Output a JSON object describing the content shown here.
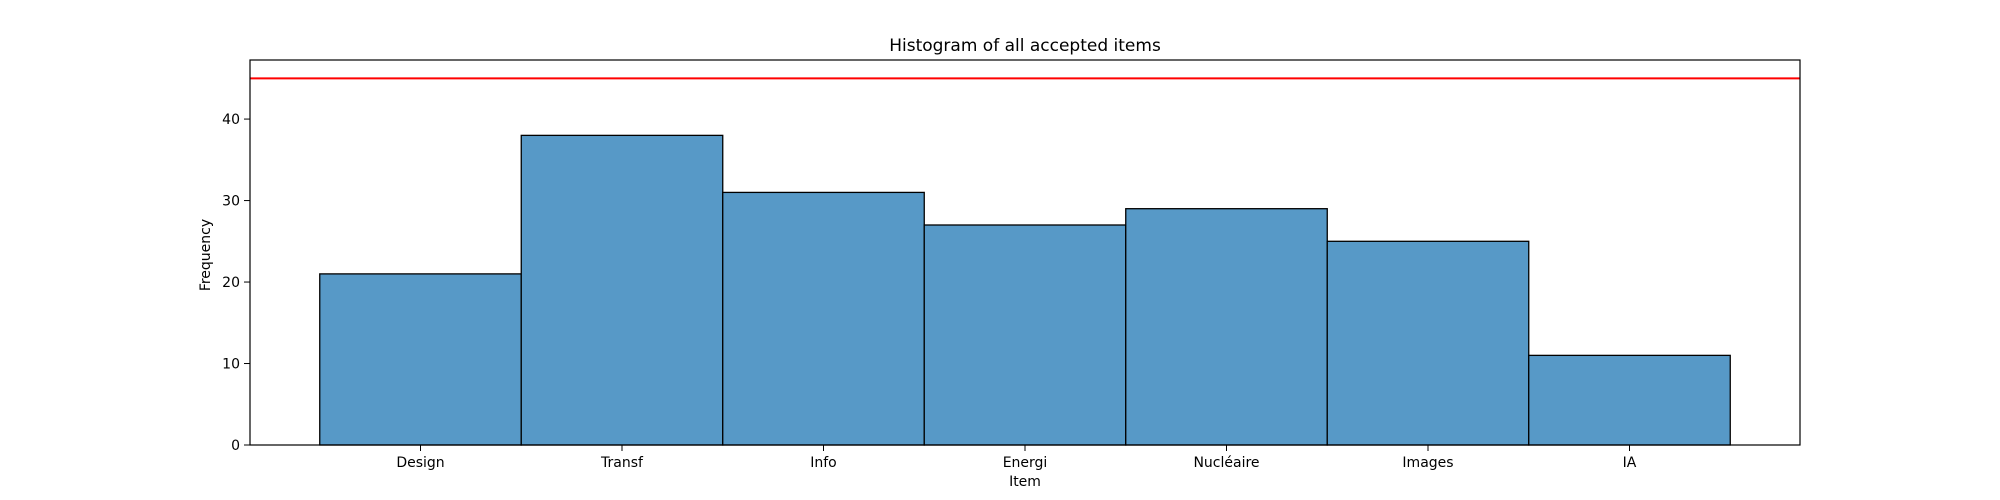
{
  "chart_data": {
    "type": "bar",
    "title": "Histogram of all accepted items",
    "xlabel": "Item",
    "ylabel": "Frequency",
    "categories": [
      "Design",
      "Transf",
      "Info",
      "Energi",
      "Nucléaire",
      "Images",
      "IA"
    ],
    "values": [
      21,
      38,
      31,
      27,
      29,
      25,
      11
    ],
    "ylim": [
      0,
      47.25
    ],
    "yticks": [
      0,
      10,
      20,
      30,
      40
    ],
    "reference_line": 45,
    "grid": false,
    "legend": "none",
    "colors": {
      "bar_fill": "#5799c7",
      "bar_edge": "#000000",
      "reference_line": "#ff0000",
      "axes": "#000000"
    }
  }
}
